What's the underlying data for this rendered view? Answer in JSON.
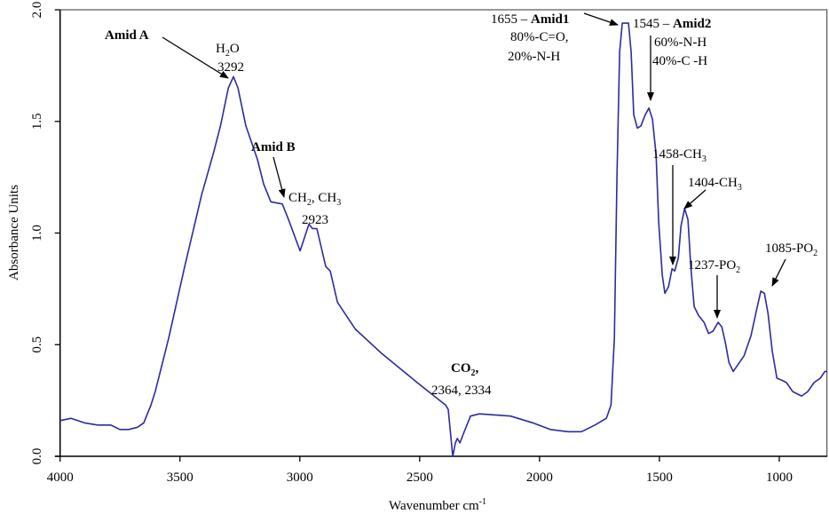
{
  "chart_data": {
    "type": "line",
    "xlabel": "Wavenumber cm",
    "xlabel_sup": "-1",
    "ylabel": "Absorbance Units",
    "xlim": [
      4000,
      800
    ],
    "ylim": [
      0,
      2.0
    ],
    "x_ticks": [
      4000,
      3500,
      3000,
      2500,
      2000,
      1500,
      1000
    ],
    "x_tick_labels": [
      "4000",
      "3500",
      "3000",
      "2500",
      "2000",
      "1500",
      "1000"
    ],
    "y_ticks": [
      0,
      0.5,
      1.0,
      1.5,
      2.0
    ],
    "y_tick_labels": [
      "0.0",
      "0.5",
      "1.0",
      "1.5",
      "2.0"
    ],
    "grid": false,
    "series": [
      {
        "name": "spectrum",
        "color": "#2b2ba0",
        "points": [
          [
            4000,
            0.16
          ],
          [
            3954,
            0.17
          ],
          [
            3899,
            0.15
          ],
          [
            3843,
            0.14
          ],
          [
            3788,
            0.14
          ],
          [
            3751,
            0.12
          ],
          [
            3714,
            0.12
          ],
          [
            3677,
            0.13
          ],
          [
            3651,
            0.15
          ],
          [
            3621,
            0.23
          ],
          [
            3603,
            0.29
          ],
          [
            3547,
            0.53
          ],
          [
            3480,
            0.85
          ],
          [
            3410,
            1.17
          ],
          [
            3360,
            1.36
          ],
          [
            3331,
            1.48
          ],
          [
            3298,
            1.65
          ],
          [
            3277,
            1.7
          ],
          [
            3258,
            1.65
          ],
          [
            3225,
            1.48
          ],
          [
            3177,
            1.33
          ],
          [
            3151,
            1.22
          ],
          [
            3121,
            1.14
          ],
          [
            3073,
            1.13
          ],
          [
            3047,
            1.06
          ],
          [
            2999,
            0.92
          ],
          [
            2962,
            1.04
          ],
          [
            2947,
            1.02
          ],
          [
            2929,
            1.02
          ],
          [
            2892,
            0.85
          ],
          [
            2873,
            0.83
          ],
          [
            2843,
            0.69
          ],
          [
            2769,
            0.57
          ],
          [
            2658,
            0.46
          ],
          [
            2510,
            0.33
          ],
          [
            2392,
            0.23
          ],
          [
            2381,
            0.21
          ],
          [
            2362,
            0.0
          ],
          [
            2351,
            0.06
          ],
          [
            2343,
            0.08
          ],
          [
            2332,
            0.06
          ],
          [
            2318,
            0.1
          ],
          [
            2288,
            0.18
          ],
          [
            2251,
            0.19
          ],
          [
            2121,
            0.18
          ],
          [
            2029,
            0.15
          ],
          [
            1955,
            0.12
          ],
          [
            1880,
            0.11
          ],
          [
            1825,
            0.11
          ],
          [
            1769,
            0.14
          ],
          [
            1721,
            0.17
          ],
          [
            1702,
            0.23
          ],
          [
            1688,
            0.53
          ],
          [
            1677,
            1.25
          ],
          [
            1666,
            1.81
          ],
          [
            1655,
            1.94
          ],
          [
            1629,
            1.94
          ],
          [
            1618,
            1.81
          ],
          [
            1607,
            1.53
          ],
          [
            1592,
            1.47
          ],
          [
            1577,
            1.48
          ],
          [
            1559,
            1.53
          ],
          [
            1544,
            1.56
          ],
          [
            1529,
            1.51
          ],
          [
            1514,
            1.35
          ],
          [
            1503,
            1.05
          ],
          [
            1488,
            0.81
          ],
          [
            1477,
            0.73
          ],
          [
            1462,
            0.76
          ],
          [
            1447,
            0.84
          ],
          [
            1436,
            0.83
          ],
          [
            1421,
            0.89
          ],
          [
            1410,
            1.03
          ],
          [
            1395,
            1.11
          ],
          [
            1381,
            1.06
          ],
          [
            1369,
            0.85
          ],
          [
            1355,
            0.67
          ],
          [
            1336,
            0.63
          ],
          [
            1314,
            0.6
          ],
          [
            1295,
            0.55
          ],
          [
            1277,
            0.56
          ],
          [
            1255,
            0.6
          ],
          [
            1240,
            0.58
          ],
          [
            1225,
            0.51
          ],
          [
            1210,
            0.42
          ],
          [
            1192,
            0.38
          ],
          [
            1173,
            0.41
          ],
          [
            1147,
            0.45
          ],
          [
            1118,
            0.54
          ],
          [
            1096,
            0.65
          ],
          [
            1077,
            0.74
          ],
          [
            1062,
            0.73
          ],
          [
            1047,
            0.64
          ],
          [
            1029,
            0.47
          ],
          [
            1010,
            0.35
          ],
          [
            988,
            0.34
          ],
          [
            970,
            0.33
          ],
          [
            944,
            0.29
          ],
          [
            907,
            0.27
          ],
          [
            881,
            0.29
          ],
          [
            855,
            0.33
          ],
          [
            829,
            0.35
          ],
          [
            810,
            0.38
          ],
          [
            800,
            0.38
          ]
        ]
      }
    ],
    "annotations": {
      "amid_a": "Amid A",
      "h2o": [
        "H",
        "2",
        "O"
      ],
      "amid_a_wn": "3292",
      "amid_b": "Amid B",
      "ch2_ch3": [
        "CH",
        "2",
        ", CH",
        "3"
      ],
      "amid_b_wn": "2923",
      "amid1": [
        "1655 – ",
        "Amid1"
      ],
      "amid1_l1": "80%-C=O,",
      "amid1_l2": "20%-N-H",
      "amid2": [
        "1545 – ",
        "Amid2"
      ],
      "amid2_l1": "60%-N-H",
      "amid2_l2": "40%-C -H",
      "ch3_1458": [
        "1458-CH",
        "3"
      ],
      "ch3_1404": [
        "1404-CH",
        "3"
      ],
      "po2_1237": [
        "1237-PO",
        "2"
      ],
      "po2_1085": [
        "1085-PO",
        "2"
      ],
      "co2": [
        "CO",
        "2",
        ","
      ],
      "co2_wn": "2364, 2334"
    }
  }
}
